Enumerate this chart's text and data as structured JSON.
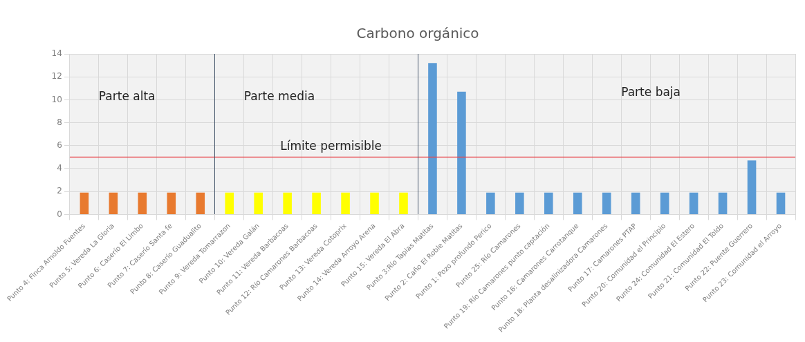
{
  "chart_data": {
    "type": "bar",
    "title": "Carbono orgánico",
    "categories": [
      "Punto 4: Finca Arnoldo Fuentes",
      "Punto 5: Vereda La Gloria",
      "Punto 6: Caserío El Limbo",
      "Punto 7: Caserío Santa fe",
      "Punto 8: Caserío Guadualito",
      "Punto 9: Vereda Tomarrazon",
      "Punto 10: Vereda Galán",
      "Punto 11: Vereda Barbacoas",
      "Punto 12: Río Camarones Barbacoas",
      "Punto 13: Vereda Cotoprix",
      "Punto 14: Vereda Arroyo Arena",
      "Punto 15: Vereda El Abra",
      "Punto 3:Río Tapias Matitas",
      "Punto 2: Caño El Roble Matitas",
      "Punto 1: Pozo profundo Perico",
      "Punto 25: Río Camarones",
      "Punto 19: Río Camarones punto captación",
      "Punto 16: Camarones Carrotanque",
      "Punto 18: Planta desalinizadora Camarones",
      "Punto 17: Camarones PTAP",
      "Punto 20: Comunidad el Principio",
      "Punto 24: Comunidad El Estero",
      "Punto 21: Comunidad El Toldo",
      "Punto 22: Puente Guerrero",
      "Punto 23: Comunidad el Arroyo"
    ],
    "values": [
      1.9,
      1.9,
      1.9,
      1.9,
      1.9,
      1.9,
      1.9,
      1.9,
      1.9,
      1.9,
      1.9,
      1.9,
      13.2,
      10.7,
      1.9,
      1.9,
      1.9,
      1.9,
      1.9,
      1.9,
      1.9,
      1.9,
      1.9,
      4.7,
      1.9
    ],
    "colors": [
      "#e87a2f",
      "#e87a2f",
      "#e87a2f",
      "#e87a2f",
      "#e87a2f",
      "#ffff00",
      "#ffff00",
      "#ffff00",
      "#ffff00",
      "#ffff00",
      "#ffff00",
      "#ffff00",
      "#5b9bd5",
      "#5b9bd5",
      "#5b9bd5",
      "#5b9bd5",
      "#5b9bd5",
      "#5b9bd5",
      "#5b9bd5",
      "#5b9bd5",
      "#5b9bd5",
      "#5b9bd5",
      "#5b9bd5",
      "#5b9bd5",
      "#5b9bd5"
    ],
    "ylim": [
      0,
      14
    ],
    "yticks": [
      0,
      2,
      4,
      6,
      8,
      10,
      12,
      14
    ],
    "grid": true,
    "ref_lines": [
      {
        "axis": "y",
        "value": 5,
        "label": "Límite permisible",
        "color": "#e8474c"
      }
    ],
    "annotations": [
      "Parte alta",
      "Parte media",
      "Parte baja"
    ]
  }
}
